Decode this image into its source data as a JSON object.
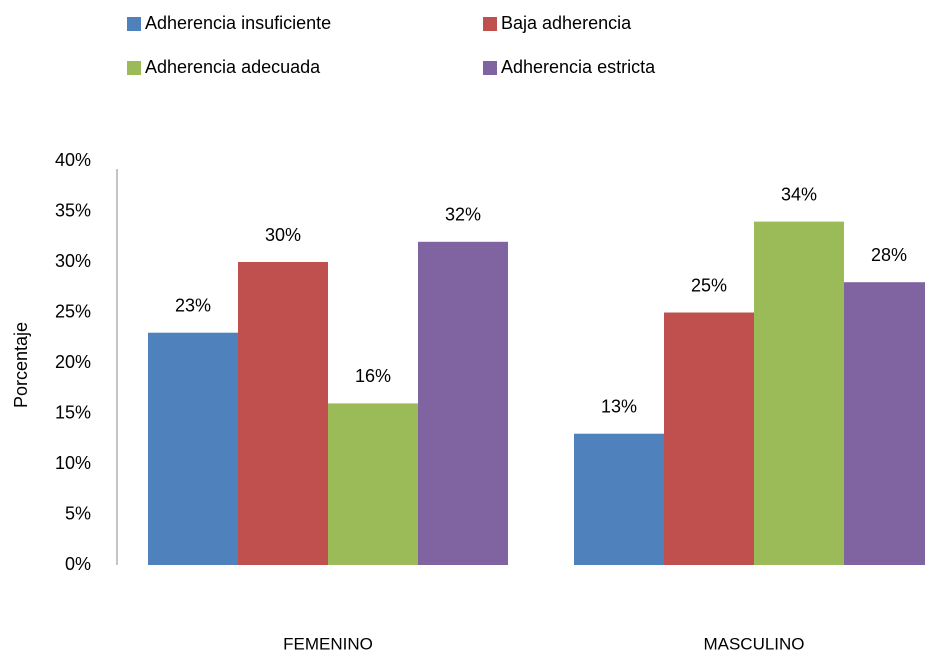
{
  "chart_data": {
    "type": "bar",
    "y_label": "Porcentaje",
    "categories": [
      "FEMENINO",
      "MASCULINO"
    ],
    "series": [
      {
        "name": "Adherencia insuficiente",
        "color": "#4f81bd",
        "values": [
          23,
          13
        ],
        "value_labels": [
          "23%",
          "13%"
        ]
      },
      {
        "name": "Baja adherencia",
        "color": "#c0504d",
        "values": [
          30,
          25
        ],
        "value_labels": [
          "30%",
          "25%"
        ]
      },
      {
        "name": "Adherencia adecuada",
        "color": "#9bbb59",
        "values": [
          16,
          34
        ],
        "value_labels": [
          "16%",
          "34%"
        ]
      },
      {
        "name": "Adherencia estricta",
        "color": "#8064a2",
        "values": [
          32,
          28
        ],
        "value_labels": [
          "32%",
          "28%"
        ]
      }
    ],
    "ylim": [
      0,
      40
    ],
    "yticks": [
      {
        "value": 0,
        "label": "0%"
      },
      {
        "value": 5,
        "label": "5%"
      },
      {
        "value": 10,
        "label": "10%"
      },
      {
        "value": 15,
        "label": "15%"
      },
      {
        "value": 20,
        "label": "20%"
      },
      {
        "value": 25,
        "label": "25%"
      },
      {
        "value": 30,
        "label": "30%"
      },
      {
        "value": 35,
        "label": "35%"
      },
      {
        "value": 40,
        "label": "40%"
      }
    ],
    "grid": false,
    "legend_position": "top"
  }
}
